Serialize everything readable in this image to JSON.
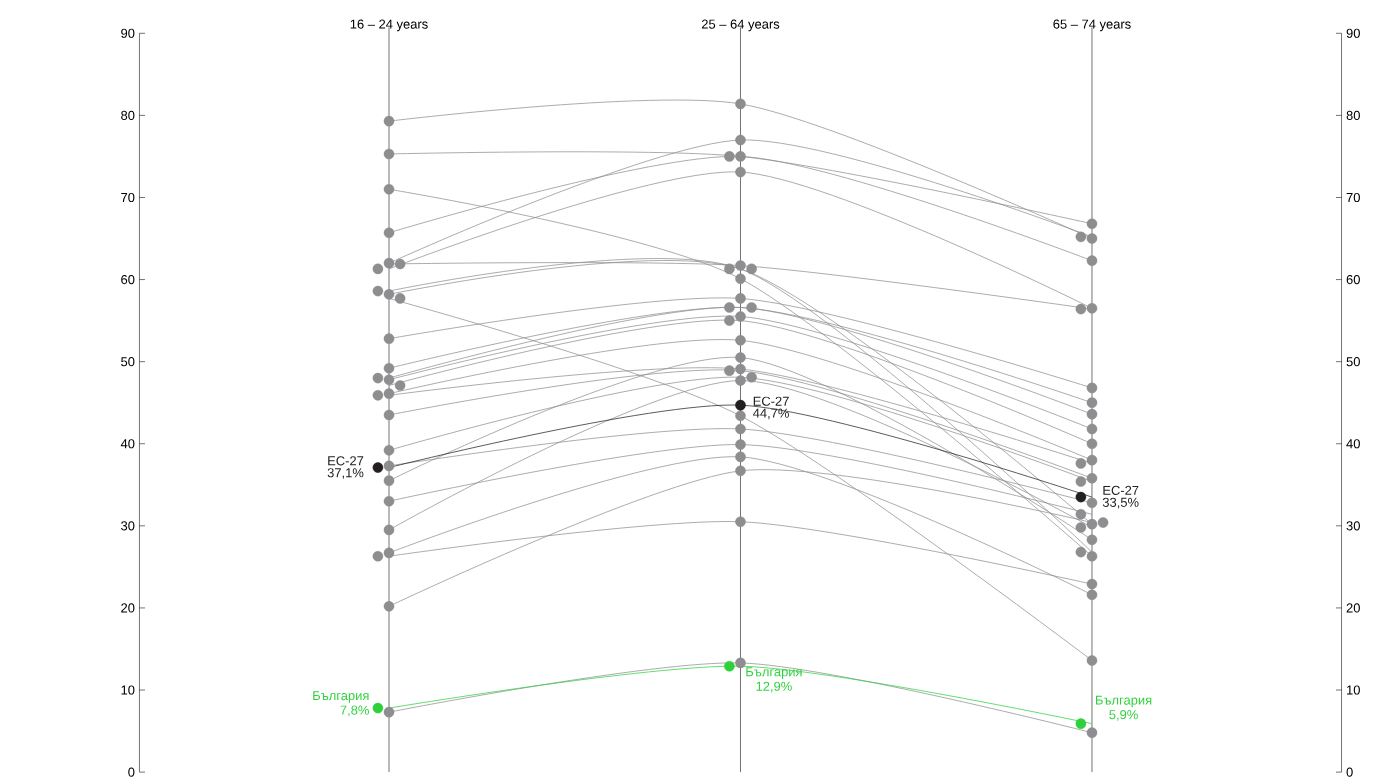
{
  "chart_data": {
    "type": "line",
    "categories": [
      "16 – 24 years",
      "25 – 64 years",
      "65 – 74 years"
    ],
    "ylim": [
      0,
      90
    ],
    "yticks": [
      0,
      10,
      20,
      30,
      40,
      50,
      60,
      70,
      80,
      90
    ],
    "y2lim": [
      0,
      90
    ],
    "y2ticks": [
      0,
      10,
      20,
      30,
      40,
      50,
      60,
      70,
      80,
      90
    ],
    "grid": "x",
    "marker": "circle",
    "line_style": "solid",
    "series": [
      {
        "color": "#8e8e91",
        "values": [
          79.3,
          81.4,
          65.0
        ]
      },
      {
        "color": "#8e8e91",
        "values": [
          75.3,
          75.0,
          66.8
        ]
      },
      {
        "color": "#8e8e91",
        "values": [
          71.0,
          60.1,
          26.3
        ]
      },
      {
        "color": "#8e8e91",
        "values": [
          65.7,
          75.0,
          62.3
        ]
      },
      {
        "color": "#8e8e91",
        "values": [
          62.0,
          77.0,
          65.2
        ]
      },
      {
        "color": "#8e8e91",
        "values": [
          61.3,
          73.1,
          56.5
        ]
      },
      {
        "color": "#8e8e91",
        "values": [
          61.9,
          61.7,
          56.4
        ]
      },
      {
        "color": "#8e8e91",
        "values": [
          58.2,
          61.3,
          30.2
        ]
      },
      {
        "color": "#8e8e91",
        "values": [
          58.6,
          61.3,
          26.8
        ]
      },
      {
        "color": "#8e8e91",
        "values": [
          57.7,
          43.4,
          13.6
        ]
      },
      {
        "color": "#8e8e91",
        "values": [
          52.8,
          57.7,
          46.8
        ]
      },
      {
        "color": "#8e8e91",
        "values": [
          49.2,
          56.6,
          45.0
        ]
      },
      {
        "color": "#8e8e91",
        "values": [
          48.0,
          56.6,
          43.6
        ]
      },
      {
        "color": "#8e8e91",
        "values": [
          47.8,
          55.5,
          41.8
        ]
      },
      {
        "color": "#8e8e91",
        "values": [
          47.1,
          55.0,
          40.0
        ]
      },
      {
        "color": "#8e8e91",
        "values": [
          46.1,
          52.6,
          38.0
        ]
      },
      {
        "color": "#8e8e91",
        "values": [
          45.9,
          49.1,
          37.6
        ]
      },
      {
        "color": "#8e8e91",
        "values": [
          43.5,
          48.9,
          35.8
        ]
      },
      {
        "color": "#8e8e91",
        "values": [
          39.2,
          48.1,
          35.4
        ]
      },
      {
        "color": "#8e8e91",
        "values": [
          35.5,
          50.5,
          28.3
        ]
      },
      {
        "color": "#8e8e91",
        "values": [
          29.5,
          47.7,
          29.8
        ]
      },
      {
        "color": "#8e8e91",
        "values": [
          37.3,
          41.8,
          32.8
        ]
      },
      {
        "color": "#8e8e91",
        "values": [
          33.0,
          39.9,
          31.4
        ]
      },
      {
        "color": "#8e8e91",
        "values": [
          26.7,
          38.4,
          21.6
        ]
      },
      {
        "color": "#8e8e91",
        "values": [
          26.3,
          30.5,
          22.9
        ]
      },
      {
        "color": "#8e8e91",
        "values": [
          20.2,
          36.7,
          30.4
        ]
      },
      {
        "color": "#8e8e91",
        "values": [
          7.3,
          13.3,
          4.8
        ]
      },
      {
        "name": "ЕС-27",
        "color": "#231f20",
        "values": [
          37.1,
          44.7,
          33.5
        ],
        "value_labels": [
          "37,1%",
          "44,7%",
          "33,5%"
        ]
      },
      {
        "name": "България",
        "color": "#2ed13c",
        "values": [
          7.8,
          12.9,
          5.9
        ],
        "value_labels": [
          "7,8%",
          "12,9%",
          "5,9%"
        ]
      }
    ]
  }
}
